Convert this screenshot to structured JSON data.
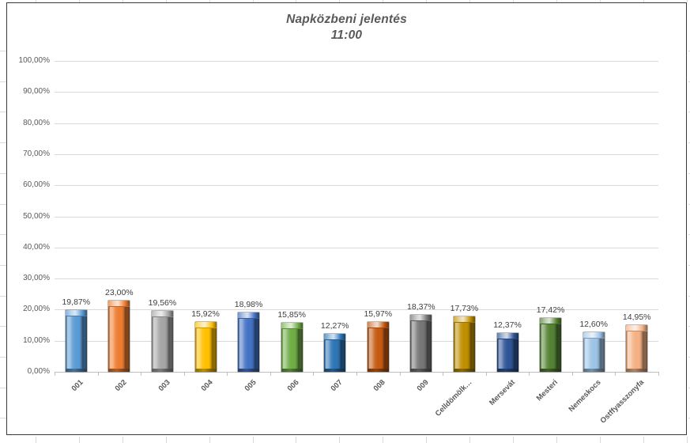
{
  "chart_data": {
    "type": "bar",
    "title": "Napközbeni jelentés",
    "subtitle": "11:00",
    "categories": [
      "001",
      "002",
      "003",
      "004",
      "005",
      "006",
      "007",
      "008",
      "009",
      "Celldömölk…",
      "Mersevát",
      "Mesteri",
      "Nemeskocs",
      "Ostffyasszonyfa"
    ],
    "values": [
      19.87,
      23.0,
      19.56,
      15.92,
      18.98,
      15.85,
      12.27,
      15.97,
      18.37,
      17.73,
      12.37,
      17.42,
      12.6,
      14.95
    ],
    "value_labels": [
      "19,87%",
      "23,00%",
      "19,56%",
      "15,92%",
      "18,98%",
      "15,85%",
      "12,27%",
      "15,97%",
      "18,37%",
      "17,73%",
      "12,37%",
      "17,42%",
      "12,60%",
      "14,95%"
    ],
    "bar_colors": [
      "#5B9BD5",
      "#ED7D31",
      "#A5A5A5",
      "#FFC000",
      "#4472C4",
      "#70AD47",
      "#2E75B6",
      "#C55A11",
      "#767676",
      "#BF8F00",
      "#2F5597",
      "#548235",
      "#9DC3E6",
      "#F4B183"
    ],
    "ylim": [
      0,
      100
    ],
    "ytick_step": 10,
    "ytick_labels": [
      "0,00%",
      "10,00%",
      "20,00%",
      "30,00%",
      "40,00%",
      "50,00%",
      "60,00%",
      "70,00%",
      "80,00%",
      "90,00%",
      "100,00%"
    ],
    "xlabel": "",
    "ylabel": "",
    "grid": "horizontal",
    "legend": "none"
  },
  "colors": {
    "grid": "#d9d9d9",
    "axis_line": "#bfbfbf",
    "axis_text": "#595959",
    "title_text": "#595959",
    "data_label_text": "#3f3f3f",
    "frame_border": "#3a3a3a",
    "sheet_stub": "#d9d9d9"
  }
}
